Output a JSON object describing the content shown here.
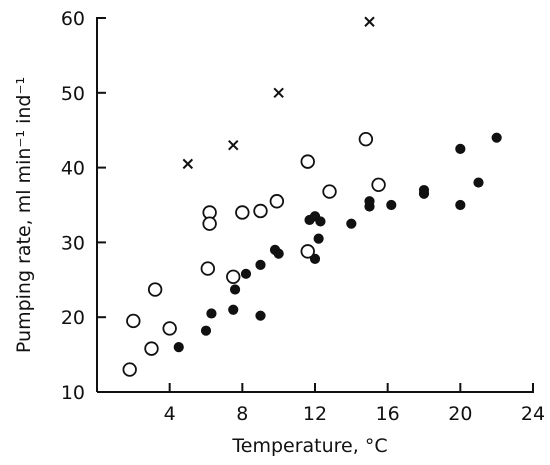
{
  "chart_data": {
    "type": "scatter",
    "xlabel": "Temperature, °C",
    "ylabel": "Pumping rate, ml min⁻¹ ind⁻¹",
    "xlim": [
      0,
      24
    ],
    "ylim": [
      10,
      60
    ],
    "x_ticks": [
      4,
      8,
      12,
      16,
      20,
      24
    ],
    "y_ticks": [
      10,
      20,
      30,
      40,
      50,
      60
    ],
    "series": [
      {
        "marker": "filled-circle",
        "points": [
          [
            4.5,
            16
          ],
          [
            6,
            18.2
          ],
          [
            6.3,
            20.5
          ],
          [
            7.5,
            21
          ],
          [
            7.6,
            23.7
          ],
          [
            8.2,
            25.8
          ],
          [
            9,
            27
          ],
          [
            9,
            20.2
          ],
          [
            9.8,
            29
          ],
          [
            10,
            28.5
          ],
          [
            11.7,
            33
          ],
          [
            12,
            33.5
          ],
          [
            12,
            27.8
          ],
          [
            12.2,
            30.5
          ],
          [
            12.3,
            32.8
          ],
          [
            14,
            32.5
          ],
          [
            15,
            34.8
          ],
          [
            15,
            35.5
          ],
          [
            16.2,
            35
          ],
          [
            18,
            37
          ],
          [
            18,
            36.5
          ],
          [
            20,
            42.5
          ],
          [
            20,
            35
          ],
          [
            21,
            38
          ],
          [
            22,
            44
          ]
        ]
      },
      {
        "marker": "open-circle",
        "points": [
          [
            1.8,
            13
          ],
          [
            2,
            19.5
          ],
          [
            3,
            15.8
          ],
          [
            3.2,
            23.7
          ],
          [
            4,
            18.5
          ],
          [
            6.1,
            26.5
          ],
          [
            6.2,
            34
          ],
          [
            6.2,
            32.5
          ],
          [
            7.5,
            25.4
          ],
          [
            8,
            34
          ],
          [
            9,
            34.2
          ],
          [
            9.9,
            35.5
          ],
          [
            11.6,
            28.8
          ],
          [
            11.6,
            40.8
          ],
          [
            12.8,
            36.8
          ],
          [
            14.8,
            43.8
          ],
          [
            15.5,
            37.7
          ]
        ]
      },
      {
        "marker": "cross",
        "points": [
          [
            5,
            40.5
          ],
          [
            7.5,
            43
          ],
          [
            10,
            50
          ],
          [
            15,
            59.5
          ]
        ]
      }
    ]
  }
}
